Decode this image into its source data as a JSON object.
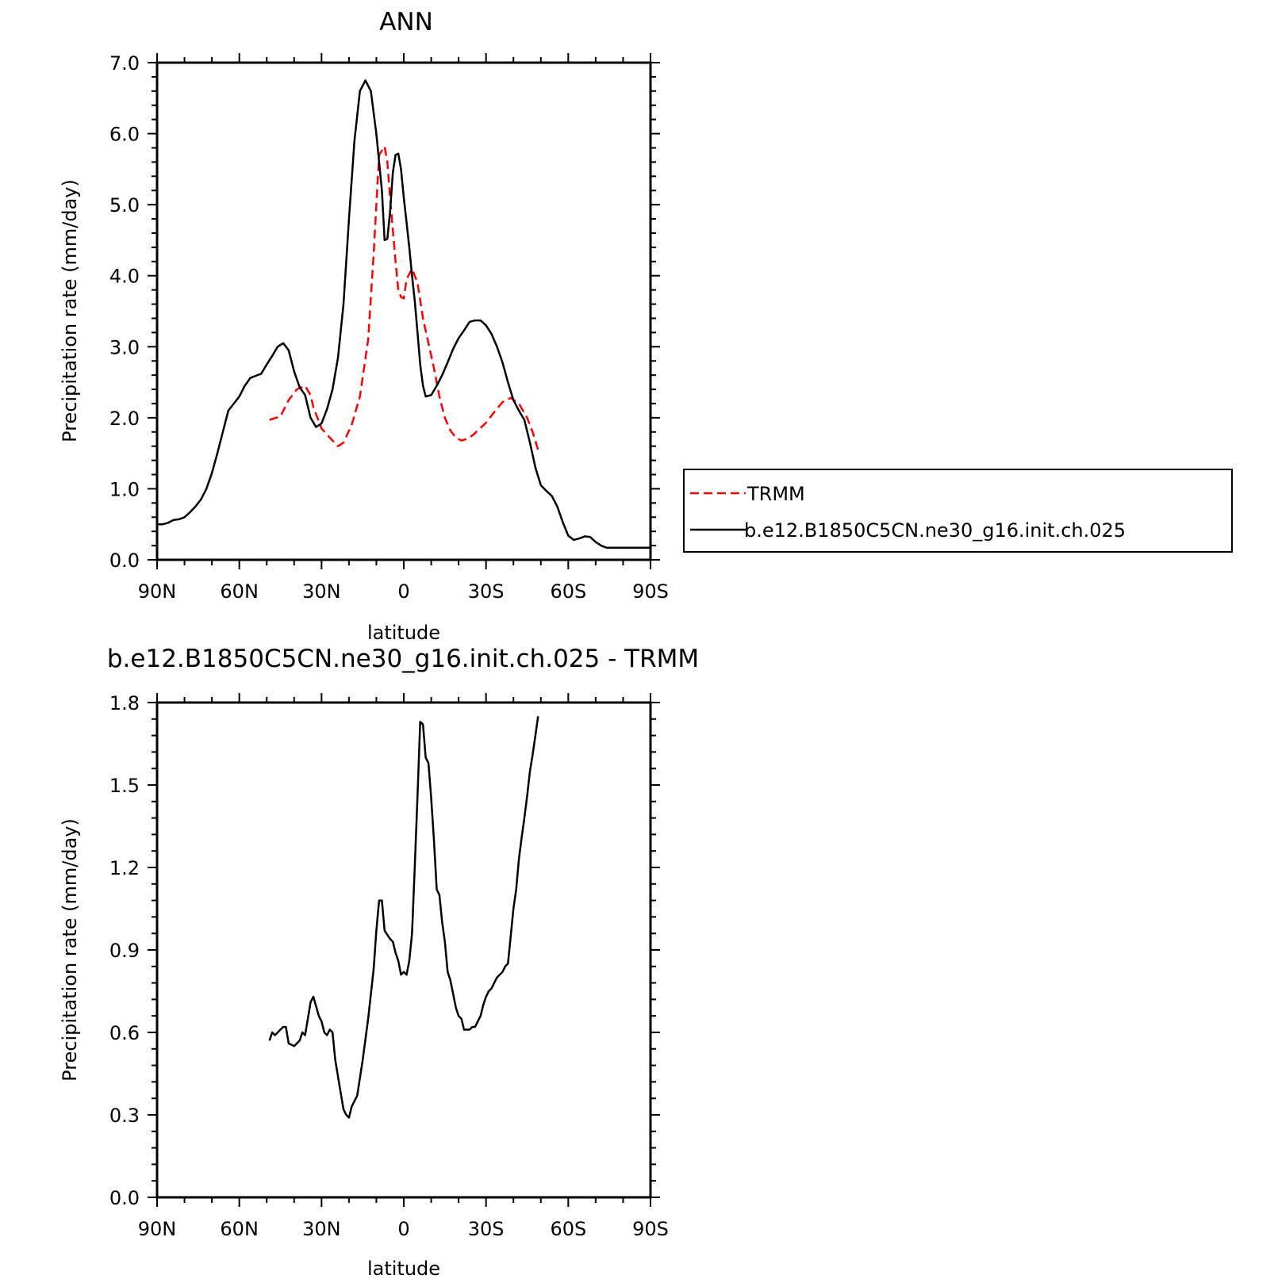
{
  "chart_data": [
    {
      "type": "line",
      "title": "ANN",
      "xlabel": "latitude",
      "ylabel": "Precipitation rate (mm/day)",
      "xlim": [
        90,
        -90
      ],
      "ylim": [
        0,
        7
      ],
      "x_ticks": [
        {
          "value": 90,
          "label": "90N"
        },
        {
          "value": 60,
          "label": "60N"
        },
        {
          "value": 30,
          "label": "30N"
        },
        {
          "value": 0,
          "label": "0"
        },
        {
          "value": -30,
          "label": "30S"
        },
        {
          "value": -60,
          "label": "60S"
        },
        {
          "value": -90,
          "label": "90S"
        }
      ],
      "y_ticks": [
        {
          "value": 0,
          "label": "0.0"
        },
        {
          "value": 1,
          "label": "1.0"
        },
        {
          "value": 2,
          "label": "2.0"
        },
        {
          "value": 3,
          "label": "3.0"
        },
        {
          "value": 4,
          "label": "4.0"
        },
        {
          "value": 5,
          "label": "5.0"
        },
        {
          "value": 6,
          "label": "6.0"
        },
        {
          "value": 7,
          "label": "7.0"
        }
      ],
      "legend_position": "right",
      "series": [
        {
          "name": "TRMM",
          "color": "#ff0000",
          "dash": "dashed",
          "x": [
            49,
            45,
            42,
            39,
            36,
            34,
            33,
            30,
            27,
            24,
            22,
            19,
            16,
            13,
            11,
            9,
            7,
            6,
            5,
            3,
            2,
            1,
            0,
            -1,
            -3,
            -5,
            -7,
            -9,
            -11,
            -13,
            -15,
            -17,
            -19,
            -21,
            -23,
            -25,
            -27,
            -30,
            -33,
            -36,
            -39,
            -42,
            -45,
            -47,
            -49
          ],
          "y": [
            1.97,
            2.02,
            2.25,
            2.4,
            2.45,
            2.32,
            2.15,
            1.85,
            1.72,
            1.6,
            1.65,
            1.9,
            2.3,
            3.1,
            4.3,
            5.7,
            5.82,
            5.6,
            5.1,
            4.2,
            3.8,
            3.7,
            3.68,
            3.95,
            4.1,
            3.9,
            3.4,
            3.05,
            2.7,
            2.3,
            2.0,
            1.82,
            1.72,
            1.68,
            1.7,
            1.75,
            1.82,
            1.93,
            2.08,
            2.22,
            2.28,
            2.2,
            2.0,
            1.8,
            1.55
          ]
        },
        {
          "name": "b.e12.B1850C5CN.ne30_g16.init.ch.025",
          "color": "#000000",
          "dash": "solid",
          "x": [
            90,
            88,
            86,
            84,
            82,
            80,
            78,
            76,
            74,
            72,
            70,
            68,
            66,
            64,
            62,
            60,
            58,
            56,
            54,
            52,
            50,
            48,
            46,
            44,
            42,
            40,
            38,
            36,
            34,
            32,
            30,
            28,
            26,
            24,
            22,
            20,
            18,
            16,
            14,
            12,
            10,
            8,
            7,
            6,
            5,
            4,
            3,
            2,
            1,
            0,
            -1,
            -2,
            -3,
            -4,
            -5,
            -6,
            -7,
            -8,
            -10,
            -12,
            -14,
            -16,
            -18,
            -20,
            -22,
            -24,
            -26,
            -28,
            -30,
            -32,
            -34,
            -36,
            -38,
            -40,
            -42,
            -44,
            -46,
            -48,
            -50,
            -52,
            -54,
            -56,
            -58,
            -60,
            -62,
            -64,
            -66,
            -68,
            -70,
            -72,
            -74,
            -76,
            -78,
            -80,
            -82,
            -84,
            -86,
            -88,
            -90
          ],
          "y": [
            0.5,
            0.5,
            0.52,
            0.56,
            0.57,
            0.6,
            0.67,
            0.75,
            0.85,
            1.0,
            1.22,
            1.5,
            1.8,
            2.1,
            2.2,
            2.3,
            2.45,
            2.56,
            2.59,
            2.62,
            2.75,
            2.87,
            3.0,
            3.05,
            2.95,
            2.65,
            2.43,
            2.32,
            2.0,
            1.87,
            1.92,
            2.12,
            2.4,
            2.85,
            3.6,
            4.8,
            5.9,
            6.6,
            6.75,
            6.6,
            6.0,
            5.2,
            4.5,
            4.52,
            4.9,
            5.45,
            5.7,
            5.72,
            5.5,
            5.1,
            4.75,
            4.4,
            4.0,
            3.65,
            3.2,
            2.75,
            2.45,
            2.3,
            2.32,
            2.45,
            2.6,
            2.78,
            2.97,
            3.12,
            3.23,
            3.35,
            3.37,
            3.37,
            3.3,
            3.18,
            3.0,
            2.78,
            2.5,
            2.25,
            2.1,
            1.97,
            1.65,
            1.3,
            1.05,
            0.97,
            0.9,
            0.75,
            0.53,
            0.34,
            0.28,
            0.3,
            0.33,
            0.32,
            0.25,
            0.2,
            0.17,
            0.17,
            0.17,
            0.17,
            0.17,
            0.17,
            0.17,
            0.17,
            0.17
          ]
        }
      ]
    },
    {
      "type": "line",
      "title": "b.e12.B1850C5CN.ne30_g16.init.ch.025 - TRMM",
      "xlabel": "latitude",
      "ylabel": "Precipitation rate (mm/day)",
      "xlim": [
        90,
        -90
      ],
      "ylim": [
        0,
        1.8
      ],
      "x_ticks": [
        {
          "value": 90,
          "label": "90N"
        },
        {
          "value": 60,
          "label": "60N"
        },
        {
          "value": 30,
          "label": "30N"
        },
        {
          "value": 0,
          "label": "0"
        },
        {
          "value": -30,
          "label": "30S"
        },
        {
          "value": -60,
          "label": "60S"
        },
        {
          "value": -90,
          "label": "90S"
        }
      ],
      "y_ticks": [
        {
          "value": 0,
          "label": "0.0"
        },
        {
          "value": 0.3,
          "label": "0.3"
        },
        {
          "value": 0.6,
          "label": "0.6"
        },
        {
          "value": 0.9,
          "label": "0.9"
        },
        {
          "value": 1.2,
          "label": "1.2"
        },
        {
          "value": 1.5,
          "label": "1.5"
        },
        {
          "value": 1.8,
          "label": "1.8"
        }
      ],
      "series": [
        {
          "color": "#000000",
          "dash": "solid",
          "x": [
            49,
            48,
            47,
            45,
            44,
            43,
            42,
            40,
            39,
            38,
            37,
            36,
            35,
            34,
            33,
            31,
            30,
            29,
            28,
            27,
            26,
            25,
            23,
            22,
            21,
            20,
            19,
            17,
            15,
            13,
            11,
            10,
            9,
            8,
            7,
            5,
            4,
            3,
            2,
            1,
            0,
            -1,
            -2,
            -3,
            -4,
            -5,
            -6,
            -7,
            -8,
            -9,
            -10,
            -11,
            -12,
            -13,
            -14,
            -15,
            -16,
            -17,
            -18,
            -19,
            -20,
            -21,
            -22,
            -23,
            -24,
            -25,
            -26,
            -27,
            -28,
            -29,
            -30,
            -31,
            -32,
            -33,
            -34,
            -35,
            -36,
            -37,
            -38,
            -39,
            -40,
            -41,
            -42,
            -43,
            -44,
            -45,
            -46,
            -47,
            -48,
            -49
          ],
          "y": [
            0.57,
            0.6,
            0.59,
            0.61,
            0.62,
            0.62,
            0.56,
            0.55,
            0.56,
            0.57,
            0.6,
            0.59,
            0.65,
            0.71,
            0.73,
            0.66,
            0.64,
            0.6,
            0.59,
            0.61,
            0.6,
            0.5,
            0.38,
            0.32,
            0.3,
            0.29,
            0.33,
            0.37,
            0.5,
            0.65,
            0.83,
            0.97,
            1.08,
            1.08,
            0.97,
            0.94,
            0.93,
            0.89,
            0.86,
            0.81,
            0.82,
            0.81,
            0.86,
            0.96,
            1.2,
            1.46,
            1.73,
            1.72,
            1.6,
            1.58,
            1.45,
            1.3,
            1.12,
            1.1,
            1.0,
            0.93,
            0.82,
            0.79,
            0.74,
            0.69,
            0.66,
            0.65,
            0.61,
            0.61,
            0.61,
            0.62,
            0.62,
            0.64,
            0.66,
            0.7,
            0.73,
            0.75,
            0.76,
            0.78,
            0.8,
            0.81,
            0.82,
            0.84,
            0.85,
            0.95,
            1.05,
            1.12,
            1.23,
            1.31,
            1.38,
            1.46,
            1.55,
            1.61,
            1.68,
            1.75
          ]
        }
      ]
    }
  ]
}
